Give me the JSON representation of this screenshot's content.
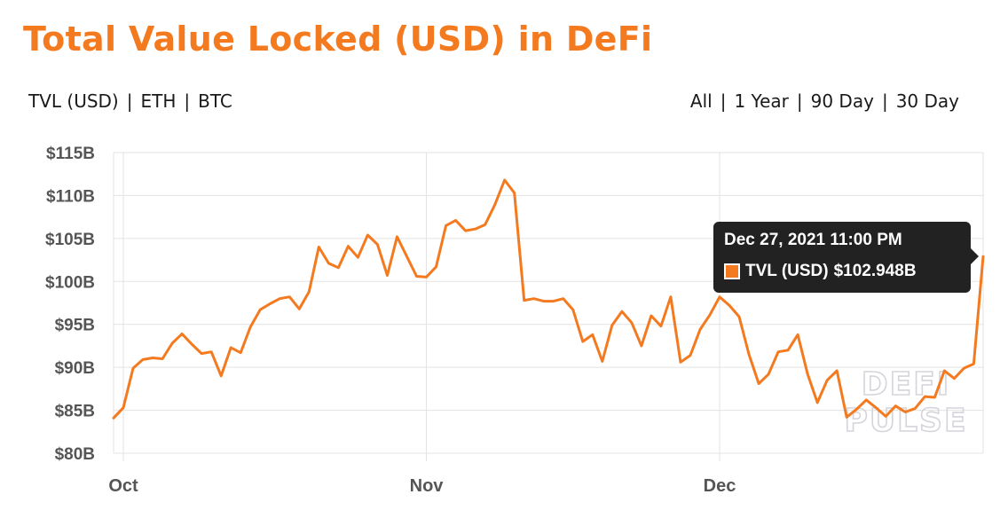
{
  "title": "Total Value Locked (USD) in DeFi",
  "unit_tabs": [
    {
      "label": "TVL (USD)",
      "active": true
    },
    {
      "label": "ETH",
      "active": false
    },
    {
      "label": "BTC",
      "active": false
    }
  ],
  "range_tabs": [
    {
      "label": "All",
      "active": false
    },
    {
      "label": "1 Year",
      "active": false
    },
    {
      "label": "90 Day",
      "active": true
    },
    {
      "label": "30 Day",
      "active": false
    }
  ],
  "separator": "|",
  "tooltip": {
    "date": "Dec 27, 2021 11:00 PM",
    "series": "TVL (USD)",
    "value": "$102.948B"
  },
  "watermark": [
    "DEFI",
    "PULSE"
  ],
  "colors": {
    "accent": "#f47a20",
    "line": "#f47a20",
    "grid": "#e3e3e3",
    "tooltip_bg": "#222222"
  },
  "chart_data": {
    "type": "line",
    "title": "Total Value Locked (USD) in DeFi",
    "xlabel": "",
    "ylabel": "",
    "y_unit": "billion USD",
    "grid": true,
    "ylim": [
      80,
      115
    ],
    "yticks": [
      80,
      85,
      90,
      95,
      100,
      105,
      110,
      115
    ],
    "ytick_labels": [
      "$80B",
      "$85B",
      "$90B",
      "$95B",
      "$100B",
      "$105B",
      "$110B",
      "$115B"
    ],
    "x_range": [
      "2021-09-30",
      "2021-12-27"
    ],
    "x_ticks": [
      {
        "date": "2021-10-01",
        "label": "Oct"
      },
      {
        "date": "2021-11-01",
        "label": "Nov"
      },
      {
        "date": "2021-12-01",
        "label": "Dec"
      }
    ],
    "series": [
      {
        "name": "TVL (USD)",
        "x": [
          "2021-09-30",
          "2021-10-01",
          "2021-10-02",
          "2021-10-03",
          "2021-10-04",
          "2021-10-05",
          "2021-10-06",
          "2021-10-07",
          "2021-10-08",
          "2021-10-09",
          "2021-10-10",
          "2021-10-11",
          "2021-10-12",
          "2021-10-13",
          "2021-10-14",
          "2021-10-15",
          "2021-10-16",
          "2021-10-17",
          "2021-10-18",
          "2021-10-19",
          "2021-10-20",
          "2021-10-21",
          "2021-10-22",
          "2021-10-23",
          "2021-10-24",
          "2021-10-25",
          "2021-10-26",
          "2021-10-27",
          "2021-10-28",
          "2021-10-29",
          "2021-10-30",
          "2021-10-31",
          "2021-11-01",
          "2021-11-02",
          "2021-11-03",
          "2021-11-04",
          "2021-11-05",
          "2021-11-06",
          "2021-11-07",
          "2021-11-08",
          "2021-11-09",
          "2021-11-10",
          "2021-11-11",
          "2021-11-12",
          "2021-11-13",
          "2021-11-14",
          "2021-11-15",
          "2021-11-16",
          "2021-11-17",
          "2021-11-18",
          "2021-11-19",
          "2021-11-20",
          "2021-11-21",
          "2021-11-22",
          "2021-11-23",
          "2021-11-24",
          "2021-11-25",
          "2021-11-26",
          "2021-11-27",
          "2021-11-28",
          "2021-11-29",
          "2021-11-30",
          "2021-12-01",
          "2021-12-02",
          "2021-12-03",
          "2021-12-04",
          "2021-12-05",
          "2021-12-06",
          "2021-12-07",
          "2021-12-08",
          "2021-12-09",
          "2021-12-10",
          "2021-12-11",
          "2021-12-12",
          "2021-12-13",
          "2021-12-14",
          "2021-12-15",
          "2021-12-16",
          "2021-12-17",
          "2021-12-18",
          "2021-12-19",
          "2021-12-20",
          "2021-12-21",
          "2021-12-22",
          "2021-12-23",
          "2021-12-24",
          "2021-12-25",
          "2021-12-26",
          "2021-12-27",
          "2021-12-27T23:00"
        ],
        "values": [
          84.1,
          85.3,
          89.9,
          90.9,
          91.1,
          91.0,
          92.8,
          93.9,
          92.7,
          91.6,
          91.8,
          89.0,
          92.3,
          91.7,
          94.7,
          96.7,
          97.4,
          98.0,
          98.2,
          96.8,
          98.8,
          104.0,
          102.1,
          101.6,
          104.1,
          102.8,
          105.4,
          104.3,
          100.7,
          105.2,
          102.9,
          100.6,
          100.5,
          101.7,
          106.5,
          107.1,
          105.9,
          106.1,
          106.6,
          108.9,
          111.8,
          110.3,
          97.8,
          98.0,
          97.7,
          97.7,
          98.0,
          96.7,
          93.0,
          93.8,
          90.7,
          94.9,
          96.5,
          95.2,
          92.5,
          96.0,
          94.8,
          98.2,
          90.6,
          91.4,
          94.4,
          96.1,
          98.2,
          97.2,
          95.9,
          91.5,
          88.1,
          89.2,
          91.8,
          92.0,
          93.8,
          89.2,
          85.9,
          88.5,
          89.6,
          84.2,
          85.1,
          86.2,
          85.3,
          84.3,
          85.5,
          84.8,
          85.2,
          86.6,
          86.5,
          89.6,
          88.7,
          89.9,
          90.4,
          102.9
        ]
      }
    ],
    "tooltip": {
      "x": "2021-12-27T23:00",
      "label": "Dec 27, 2021 11:00 PM",
      "value": 102.948
    }
  }
}
